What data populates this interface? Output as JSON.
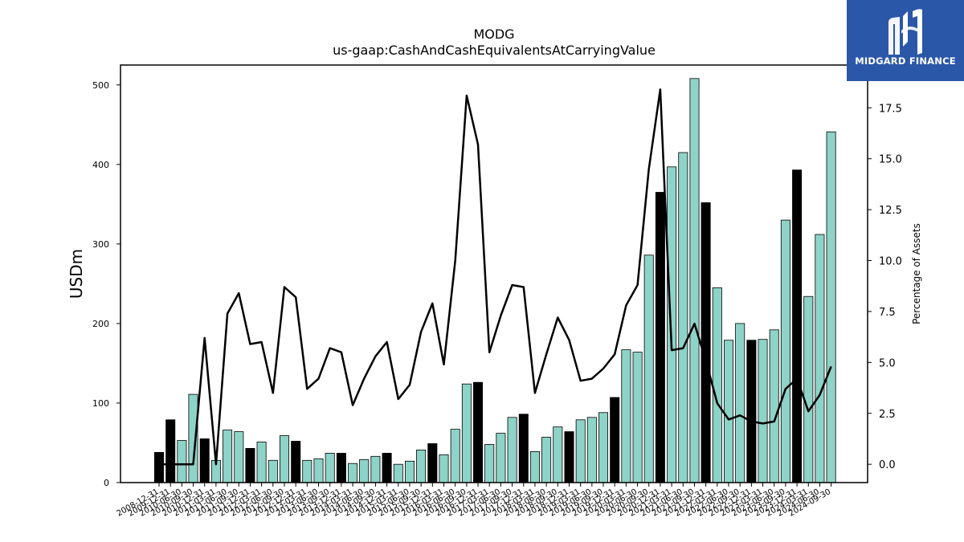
{
  "chart_data": {
    "type": "bar",
    "title": "MODG",
    "subtitle": "us-gaap:CashAndCashEquivalentsAtCarryingValue",
    "ylabel": "USDm",
    "y2label": "Percentage of Assets",
    "ylim": [
      0,
      525
    ],
    "y2lim": [
      -0.9,
      19.6
    ],
    "yticks": [
      0,
      100,
      200,
      300,
      400,
      500
    ],
    "y2ticks": [
      "0.0",
      "2.5",
      "5.0",
      "7.5",
      "10.0",
      "12.5",
      "15.0",
      "17.5"
    ],
    "grid": false,
    "categories": [
      "2008-12-31",
      "2009-12-31",
      "2010-06-30",
      "2010-09-30",
      "2010-12-31",
      "2011-03-31",
      "2011-06-30",
      "2011-09-30",
      "2011-12-31",
      "2012-03-31",
      "2012-06-30",
      "2012-09-30",
      "2012-12-31",
      "2013-03-31",
      "2013-06-30",
      "2013-09-30",
      "2013-12-31",
      "2014-03-31",
      "2014-06-30",
      "2014-09-30",
      "2014-12-31",
      "2015-03-31",
      "2015-06-30",
      "2015-09-30",
      "2015-12-31",
      "2016-03-31",
      "2016-06-30",
      "2016-09-30",
      "2016-12-31",
      "2017-03-31",
      "2017-06-30",
      "2017-09-30",
      "2017-12-31",
      "2018-03-31",
      "2018-06-30",
      "2018-09-30",
      "2018-12-31",
      "2019-03-31",
      "2019-06-30",
      "2019-09-30",
      "2019-12-31",
      "2020-03-31",
      "2020-06-30",
      "2020-09-30",
      "2020-12-31",
      "2021-03-31",
      "2021-06-30",
      "2021-09-30",
      "2021-12-31",
      "2022-03-31",
      "2022-06-30",
      "2022-09-30",
      "2022-12-31",
      "2023-03-31",
      "2023-06-30",
      "2023-09-30",
      "2023-12-31",
      "2024-03-31",
      "2024-06-30",
      "2024-09-30"
    ],
    "series": [
      {
        "type": "bar",
        "axis": "left",
        "values": [
          38,
          79,
          53,
          111,
          55,
          28,
          66,
          64,
          43,
          51,
          28,
          59,
          52,
          28,
          30,
          37,
          37,
          24,
          29,
          33,
          37,
          23,
          27,
          41,
          49,
          35,
          67,
          124,
          126,
          48,
          62,
          82,
          86,
          39,
          57,
          70,
          64,
          79,
          82,
          88,
          107,
          167,
          164,
          286,
          365,
          397,
          415,
          508,
          352,
          245,
          179,
          200,
          179,
          180,
          192,
          330,
          393,
          234,
          312,
          441
        ],
        "highlight": [
          true,
          true,
          false,
          false,
          true,
          false,
          false,
          false,
          true,
          false,
          false,
          false,
          true,
          false,
          false,
          false,
          true,
          false,
          false,
          false,
          true,
          false,
          false,
          false,
          true,
          false,
          false,
          false,
          true,
          false,
          false,
          false,
          true,
          false,
          false,
          false,
          true,
          false,
          false,
          false,
          true,
          false,
          false,
          false,
          true,
          false,
          false,
          false,
          true,
          false,
          false,
          false,
          true,
          false,
          false,
          false,
          true,
          false,
          false,
          false
        ],
        "colors": {
          "annual": "#000000",
          "quarterly": "#8ed3c7"
        }
      },
      {
        "type": "line",
        "axis": "right",
        "color": "#000000",
        "values": [
          0.0,
          0.0,
          0.0,
          0.0,
          6.2,
          0.0,
          7.4,
          8.4,
          5.9,
          6.0,
          3.5,
          8.7,
          8.2,
          3.7,
          4.2,
          5.7,
          5.5,
          2.9,
          4.2,
          5.3,
          6.0,
          3.2,
          3.9,
          6.5,
          7.9,
          4.9,
          10.0,
          18.1,
          15.7,
          5.5,
          7.3,
          8.8,
          8.7,
          3.5,
          5.4,
          7.2,
          6.1,
          4.1,
          4.2,
          4.7,
          5.4,
          7.8,
          8.8,
          14.5,
          18.4,
          5.6,
          5.7,
          6.9,
          5.1,
          3.0,
          2.2,
          2.4,
          2.1,
          2.0,
          2.1,
          3.7,
          4.2,
          2.6,
          3.4,
          4.8
        ]
      }
    ]
  },
  "logo": {
    "text": "MIDGARD FINANCE",
    "icon": "midgard-logo-icon",
    "background": "#2b57a8"
  }
}
